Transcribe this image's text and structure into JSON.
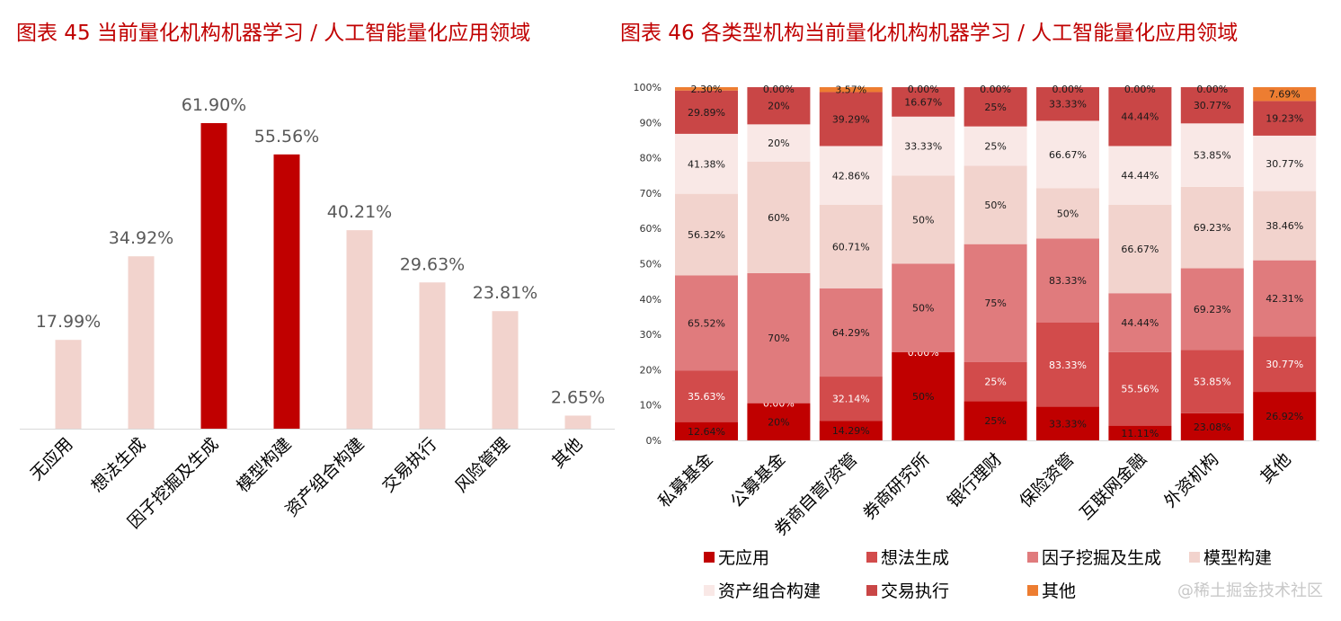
{
  "chart_data": [
    {
      "type": "bar",
      "title": "图表 45  当前量化机构机器学习 / 人工智能量化应用领域",
      "categories": [
        "无应用",
        "想法生成",
        "因子挖掘及生成",
        "模型构建",
        "资产组合构建",
        "交易执行",
        "风险管理",
        "其他"
      ],
      "values": [
        17.99,
        34.92,
        61.9,
        55.56,
        40.21,
        29.63,
        23.81,
        2.65
      ],
      "data_labels": [
        "17.99%",
        "34.92%",
        "61.90%",
        "55.56%",
        "40.21%",
        "29.63%",
        "23.81%",
        "2.65%"
      ],
      "highlight": [
        false,
        false,
        true,
        true,
        false,
        false,
        false,
        false
      ],
      "colors": {
        "normal": "#f2d3cd",
        "highlight": "#c00000"
      },
      "ylim": [
        0,
        70
      ],
      "grid": false,
      "legend": "none"
    },
    {
      "type": "bar",
      "stacked": "percent",
      "title": "图表 46  各类型机构当前量化机构机器学习 / 人工智能量化应用领域",
      "categories": [
        "私募基金",
        "公募基金",
        "券商自营/资管",
        "券商研究所",
        "银行理财",
        "保险资管",
        "互联网金融",
        "外资机构",
        "其他"
      ],
      "yticks": [
        "0%",
        "10%",
        "20%",
        "30%",
        "40%",
        "50%",
        "60%",
        "70%",
        "80%",
        "90%",
        "100%"
      ],
      "ylim": [
        0,
        100
      ],
      "grid": false,
      "legend": "bottom",
      "series": [
        {
          "name": "无应用",
          "color": "#c00000",
          "values": [
            12.64,
            20,
            14.29,
            50,
            25,
            33.33,
            11.11,
            23.08,
            26.92
          ],
          "labels": [
            "12.64%",
            "20%",
            "14.29%",
            "50%",
            "25%",
            "33.33%",
            "11.11%",
            "23.08%",
            "26.92%"
          ]
        },
        {
          "name": "想法生成",
          "color": "#d24b4b",
          "values": [
            35.63,
            0,
            32.14,
            0,
            25,
            83.33,
            55.56,
            53.85,
            30.77
          ],
          "labels": [
            "35.63%",
            "0.00%",
            "32.14%",
            "0.00%",
            "25%",
            "83.33%",
            "55.56%",
            "53.85%",
            "30.77%"
          ]
        },
        {
          "name": "因子挖掘及生成",
          "color": "#e07b7d",
          "values": [
            65.52,
            70,
            64.29,
            50,
            75,
            83.33,
            44.44,
            69.23,
            42.31
          ],
          "labels": [
            "65.52%",
            "70%",
            "64.29%",
            "50%",
            "75%",
            "83.33%",
            "44.44%",
            "69.23%",
            "42.31%"
          ]
        },
        {
          "name": "模型构建",
          "color": "#f2d3cd",
          "values": [
            56.32,
            60,
            60.71,
            50,
            50,
            50,
            66.67,
            69.23,
            38.46
          ],
          "labels": [
            "56.32%",
            "60%",
            "60.71%",
            "50%",
            "50%",
            "50%",
            "66.67%",
            "69.23%",
            "38.46%"
          ]
        },
        {
          "name": "资产组合构建",
          "color": "#f9e8e6",
          "values": [
            41.38,
            20,
            42.86,
            33.33,
            25,
            66.67,
            44.44,
            53.85,
            30.77
          ],
          "labels": [
            "41.38%",
            "20%",
            "42.86%",
            "33.33%",
            "25%",
            "66.67%",
            "44.44%",
            "53.85%",
            "30.77%"
          ]
        },
        {
          "name": "交易执行",
          "color": "#c94646",
          "values": [
            29.89,
            20,
            39.29,
            16.67,
            25,
            33.33,
            44.44,
            30.77,
            19.23
          ],
          "labels": [
            "29.89%",
            "20%",
            "39.29%",
            "16.67%",
            "25%",
            "33.33%",
            "44.44%",
            "30.77%",
            "19.23%"
          ]
        },
        {
          "name": "其他",
          "color": "#ed7d31",
          "values": [
            2.3,
            0,
            3.57,
            0,
            0,
            0,
            0,
            0,
            7.69
          ],
          "labels": [
            "2.30%",
            "0.00%",
            "3.57%",
            "0.00%",
            "0.00%",
            "0.00%",
            "0.00%",
            "0.00%",
            "7.69%"
          ]
        }
      ]
    }
  ],
  "watermark": "@稀土掘金技术社区"
}
